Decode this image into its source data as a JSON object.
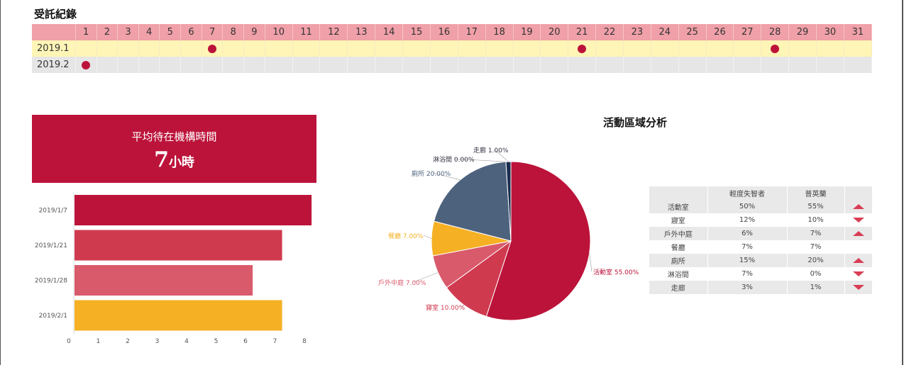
{
  "colors": {
    "primary": "#bc133a",
    "rose": "#d03a4f",
    "pink": "#d95a6b",
    "amber": "#f5b024",
    "slate": "#4d627d",
    "navy": "#1a2c4e",
    "header": "#f0a0a8",
    "row1": "#fff5b6",
    "row2": "#e6e6e6"
  },
  "calendar": {
    "title": "受託紀錄",
    "days": [
      "1",
      "2",
      "3",
      "4",
      "5",
      "6",
      "7",
      "8",
      "9",
      "10",
      "11",
      "12",
      "13",
      "14",
      "15",
      "16",
      "17",
      "18",
      "19",
      "20",
      "21",
      "22",
      "23",
      "24",
      "25",
      "26",
      "27",
      "28",
      "29",
      "30",
      "31"
    ],
    "rows": [
      {
        "label": "2019.1",
        "marked_days": [
          7,
          21,
          28
        ]
      },
      {
        "label": "2019.2",
        "marked_days": [
          1
        ]
      }
    ]
  },
  "summary": {
    "label": "平均待在機構時間",
    "value": "7",
    "unit": "小時"
  },
  "chart_data": [
    {
      "type": "bar",
      "orientation": "horizontal",
      "categories": [
        "2019/1/7",
        "2019/1/21",
        "2019/1/28",
        "2019/2/1"
      ],
      "values": [
        8.2,
        7.2,
        6.2,
        7.2
      ],
      "colors": [
        "#bc133a",
        "#d03a4f",
        "#d95a6b",
        "#f5b024"
      ],
      "xlim": [
        0,
        8
      ],
      "xticks": [
        "0",
        "1",
        "2",
        "3",
        "4",
        "5",
        "6",
        "7",
        "8"
      ]
    },
    {
      "type": "pie",
      "title": "活動區域分析",
      "slices": [
        {
          "label": "活動室",
          "value": 55,
          "text": "活動室 55.00%",
          "color": "#bc133a"
        },
        {
          "label": "寢室",
          "value": 10,
          "text": "寢室 10.00%",
          "color": "#d03a4f"
        },
        {
          "label": "戶外中庭",
          "value": 7,
          "text": "戶外中庭 7.00%",
          "color": "#d95a6b"
        },
        {
          "label": "餐廳",
          "value": 7,
          "text": "餐廳 7.00%",
          "color": "#f5b024"
        },
        {
          "label": "廁所",
          "value": 20,
          "text": "廁所 20.00%",
          "color": "#4d627d"
        },
        {
          "label": "淋浴間",
          "value": 0,
          "text": "淋浴間 0.00%",
          "color": "#6f8aa8"
        },
        {
          "label": "走廊",
          "value": 1,
          "text": "走廊 1.00%",
          "color": "#1a2c4e"
        }
      ]
    }
  ],
  "compare": {
    "headers": [
      "",
      "輕度失智者",
      "普英蘭",
      ""
    ],
    "rows": [
      {
        "area": "活動室",
        "a": "50%",
        "b": "55%",
        "trend": "up"
      },
      {
        "area": "寢室",
        "a": "12%",
        "b": "10%",
        "trend": "down"
      },
      {
        "area": "戶外中庭",
        "a": "6%",
        "b": "7%",
        "trend": "up"
      },
      {
        "area": "餐廳",
        "a": "7%",
        "b": "7%",
        "trend": "none"
      },
      {
        "area": "廁所",
        "a": "15%",
        "b": "20%",
        "trend": "up"
      },
      {
        "area": "淋浴間",
        "a": "7%",
        "b": "0%",
        "trend": "down"
      },
      {
        "area": "走廊",
        "a": "3%",
        "b": "1%",
        "trend": "down"
      }
    ]
  }
}
